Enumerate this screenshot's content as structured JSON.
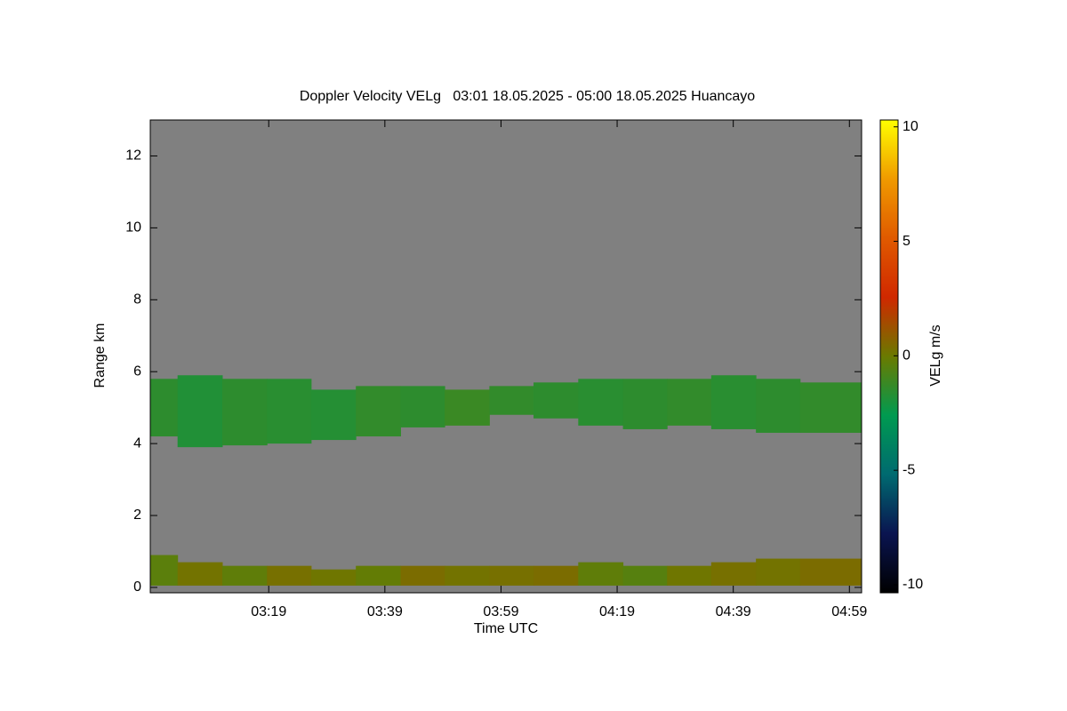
{
  "chart_data": {
    "type": "heatmap",
    "title": "Doppler Velocity VELg   03:01 18.05.2025 - 05:00 18.05.2025 Huancayo",
    "xlabel": "Time UTC",
    "ylabel": "Range km",
    "colorbar_label": "VELg m/s",
    "xlim": [
      178.6,
      301.1
    ],
    "xticks": [
      {
        "value": 199,
        "label": "03:19"
      },
      {
        "value": 219,
        "label": "03:39"
      },
      {
        "value": 239,
        "label": "03:59"
      },
      {
        "value": 259,
        "label": "04:19"
      },
      {
        "value": 279,
        "label": "04:39"
      },
      {
        "value": 299,
        "label": "04:59"
      }
    ],
    "ylim": [
      -0.15,
      13
    ],
    "yticks": [
      0,
      2,
      4,
      6,
      8,
      10,
      12
    ],
    "clim": [
      -10.35,
      10.3
    ],
    "cticks": [
      10,
      5,
      0,
      -5,
      -10
    ],
    "colormap": [
      "#000000",
      "#0a1450",
      "#006a70",
      "#009a50",
      "#6a7a00",
      "#d02800",
      "#e05a00",
      "#f09a00",
      "#ffff00"
    ],
    "background": "#808080",
    "bins": [
      178.6,
      183.3,
      191,
      198.7,
      206.3,
      214,
      221.7,
      229.3,
      237,
      244.6,
      252.3,
      260,
      267.6,
      275.2,
      282.9,
      290.5,
      301.1
    ],
    "layers": [
      {
        "base": [
          4.2,
          3.9,
          3.95,
          4.0,
          4.1,
          4.2,
          4.45,
          4.5,
          4.8,
          4.7,
          4.5,
          4.4,
          4.5,
          4.4,
          4.3,
          4.3
        ],
        "top": [
          5.8,
          5.9,
          5.8,
          5.8,
          5.5,
          5.6,
          5.6,
          5.5,
          5.6,
          5.7,
          5.8,
          5.8,
          5.8,
          5.9,
          5.8,
          5.7
        ],
        "velocity": [
          -1.5,
          -1.8,
          -1.5,
          -1.6,
          -1.7,
          -1.4,
          -1.5,
          -1.2,
          -1.4,
          -1.5,
          -1.6,
          -1.5,
          -1.4,
          -1.6,
          -1.5,
          -1.4
        ]
      },
      {
        "base": [
          0.05,
          0.05,
          0.05,
          0.05,
          0.05,
          0.05,
          0.05,
          0.05,
          0.05,
          0.05,
          0.05,
          0.05,
          0.05,
          0.05,
          0.05,
          0.05
        ],
        "top": [
          0.9,
          0.7,
          0.6,
          0.6,
          0.5,
          0.6,
          0.6,
          0.6,
          0.6,
          0.6,
          0.7,
          0.6,
          0.6,
          0.7,
          0.8,
          0.8
        ],
        "velocity": [
          -0.4,
          0.2,
          -0.3,
          0.3,
          0.1,
          -0.2,
          0.4,
          0.2,
          0.3,
          0.4,
          -0.3,
          -0.5,
          0.1,
          0.3,
          0.2,
          0.4
        ]
      }
    ]
  }
}
